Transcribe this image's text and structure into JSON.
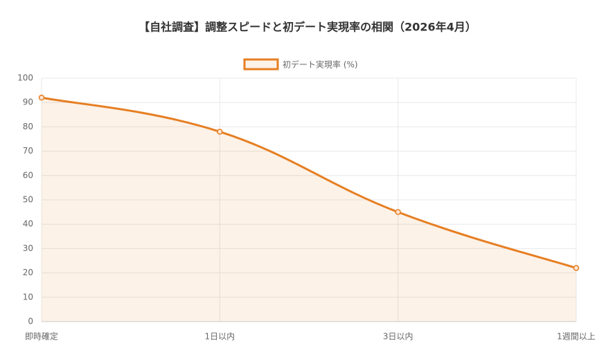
{
  "chart_data": {
    "type": "line",
    "title": "【自社調査】調整スピードと初デート実現率の相関（2026年4月）",
    "categories": [
      "即時確定",
      "1日以内",
      "3日以内",
      "1週間以上"
    ],
    "series": [
      {
        "name": "初デート実現率 (%)",
        "color": "#e67e22",
        "values": [
          92,
          78,
          45,
          22
        ]
      }
    ],
    "ylim": [
      0,
      100
    ],
    "yticks": [
      0,
      10,
      20,
      30,
      40,
      50,
      60,
      70,
      80,
      90,
      100
    ],
    "grid": true
  }
}
